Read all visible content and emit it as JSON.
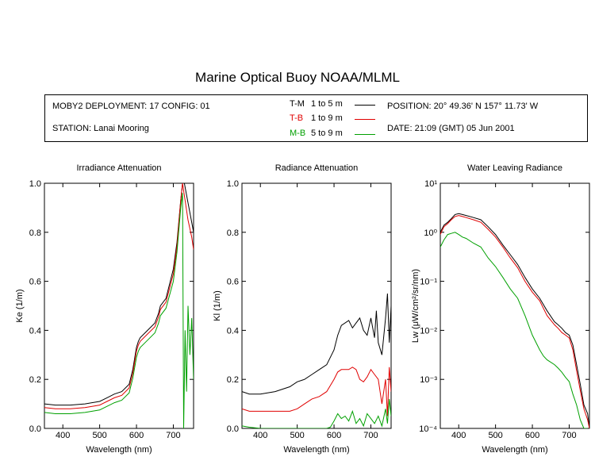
{
  "title": "Marine Optical Buoy NOAA/MLML",
  "info": {
    "deployment": "MOBY2 DEPLOYMENT: 17 CONFIG: 01",
    "station": "STATION: Lanai Mooring",
    "position": "POSITION: 20° 49.36' N   157° 11.73' W",
    "date": "DATE: 21:09 (GMT) 05 Jun 2001",
    "legend": [
      {
        "code": "T-M",
        "range": "1 to 5  m",
        "color": "#000000"
      },
      {
        "code": "T-B",
        "range": "1 to 9  m",
        "color": "#e00000"
      },
      {
        "code": "M-B",
        "range": "5 to 9  m",
        "color": "#00a000"
      }
    ]
  },
  "chart_data": [
    {
      "type": "line",
      "title": "Irradiance Attenuation",
      "xlabel": "Wavelength (nm)",
      "ylabel": "Ke  (1/m)",
      "xlim": [
        350,
        755
      ],
      "ylim": [
        0,
        1.0
      ],
      "xticks": [
        400,
        500,
        600,
        700
      ],
      "yticks": [
        0.0,
        0.2,
        0.4,
        0.6,
        0.8,
        1.0
      ],
      "ytick_labels": [
        "0.0",
        "0.2",
        "0.4",
        "0.6",
        "0.8",
        "1.0"
      ],
      "grid": false,
      "series": [
        {
          "name": "T-M",
          "color": "#000000",
          "x": [
            350,
            380,
            420,
            460,
            500,
            520,
            540,
            560,
            580,
            590,
            600,
            605,
            610,
            630,
            650,
            660,
            665,
            680,
            700,
            710,
            720,
            725,
            730,
            740,
            750,
            755
          ],
          "y": [
            0.1,
            0.095,
            0.095,
            0.1,
            0.11,
            0.125,
            0.14,
            0.15,
            0.18,
            0.24,
            0.33,
            0.355,
            0.37,
            0.4,
            0.43,
            0.47,
            0.5,
            0.53,
            0.65,
            0.76,
            0.93,
            1.0,
            1.0,
            0.92,
            0.84,
            0.8
          ]
        },
        {
          "name": "T-B",
          "color": "#e00000",
          "x": [
            350,
            380,
            420,
            460,
            500,
            520,
            540,
            560,
            580,
            590,
            600,
            605,
            610,
            630,
            650,
            660,
            665,
            680,
            700,
            710,
            720,
            725,
            730,
            740,
            750,
            755
          ],
          "y": [
            0.085,
            0.08,
            0.08,
            0.085,
            0.095,
            0.11,
            0.125,
            0.135,
            0.165,
            0.225,
            0.315,
            0.34,
            0.355,
            0.385,
            0.415,
            0.455,
            0.485,
            0.515,
            0.63,
            0.745,
            0.93,
            1.0,
            0.95,
            0.85,
            0.78,
            0.73
          ]
        },
        {
          "name": "M-B",
          "color": "#00a000",
          "x": [
            350,
            380,
            420,
            460,
            500,
            520,
            540,
            560,
            580,
            590,
            600,
            605,
            610,
            630,
            650,
            660,
            665,
            680,
            700,
            710,
            720,
            725,
            728,
            732,
            736,
            740,
            745,
            750,
            755
          ],
          "y": [
            0.065,
            0.06,
            0.06,
            0.065,
            0.075,
            0.09,
            0.105,
            0.115,
            0.145,
            0.205,
            0.29,
            0.315,
            0.33,
            0.36,
            0.39,
            0.43,
            0.46,
            0.49,
            0.6,
            0.72,
            0.9,
            0.96,
            0.0,
            0.4,
            0.15,
            0.5,
            0.3,
            0.45,
            0.2
          ]
        }
      ]
    },
    {
      "type": "line",
      "title": "Radiance Attenuation",
      "xlabel": "Wavelength (nm)",
      "ylabel": "Kl  (1/m)",
      "xlim": [
        350,
        755
      ],
      "ylim": [
        0,
        1.0
      ],
      "xticks": [
        400,
        500,
        600,
        700
      ],
      "yticks": [
        0.0,
        0.2,
        0.4,
        0.6,
        0.8,
        1.0
      ],
      "ytick_labels": [
        "0.0",
        "0.2",
        "0.4",
        "0.6",
        "0.8",
        "1.0"
      ],
      "grid": false,
      "series": [
        {
          "name": "T-M",
          "color": "#000000",
          "x": [
            350,
            370,
            400,
            440,
            480,
            500,
            520,
            540,
            560,
            580,
            600,
            610,
            620,
            640,
            650,
            660,
            670,
            680,
            690,
            700,
            710,
            715,
            720,
            730,
            740,
            745,
            750,
            755
          ],
          "y": [
            0.15,
            0.14,
            0.14,
            0.15,
            0.17,
            0.19,
            0.2,
            0.22,
            0.24,
            0.26,
            0.32,
            0.38,
            0.42,
            0.44,
            0.41,
            0.43,
            0.45,
            0.4,
            0.38,
            0.45,
            0.37,
            0.48,
            0.35,
            0.3,
            0.45,
            0.55,
            0.35,
            0.5
          ]
        },
        {
          "name": "T-B",
          "color": "#e00000",
          "x": [
            350,
            370,
            400,
            440,
            480,
            500,
            520,
            540,
            560,
            580,
            600,
            610,
            620,
            640,
            650,
            660,
            670,
            680,
            690,
            700,
            710,
            720,
            730,
            740,
            745,
            750,
            755
          ],
          "y": [
            0.08,
            0.07,
            0.07,
            0.07,
            0.07,
            0.08,
            0.1,
            0.12,
            0.13,
            0.15,
            0.2,
            0.23,
            0.24,
            0.24,
            0.25,
            0.24,
            0.2,
            0.19,
            0.21,
            0.24,
            0.22,
            0.2,
            0.1,
            0.2,
            0.05,
            0.25,
            0.15
          ]
        },
        {
          "name": "M-B",
          "color": "#00a000",
          "x": [
            350,
            370,
            400,
            440,
            480,
            520,
            560,
            580,
            590,
            600,
            610,
            620,
            630,
            640,
            650,
            660,
            670,
            680,
            690,
            700,
            710,
            720,
            730,
            740,
            745,
            750,
            755
          ],
          "y": [
            0.01,
            0.005,
            0.0,
            0.0,
            0.0,
            0.0,
            0.0,
            0.0,
            0.005,
            0.03,
            0.06,
            0.04,
            0.05,
            0.03,
            0.07,
            0.02,
            0.04,
            0.01,
            0.06,
            0.04,
            0.02,
            0.05,
            0.01,
            0.08,
            0.02,
            0.12,
            0.05
          ]
        }
      ]
    },
    {
      "type": "line",
      "title": "Water Leaving Radiance",
      "xlabel": "Wavelength (nm)",
      "ylabel": "Lw  (μW/cm²/sr/nm)",
      "log_y": true,
      "xlim": [
        350,
        755
      ],
      "ylim": [
        0.0001,
        10
      ],
      "xticks": [
        400,
        500,
        600,
        700
      ],
      "ytick_values": [
        0.0001,
        0.001,
        0.01,
        0.1,
        1,
        10
      ],
      "ytick_labels": [
        "10⁻⁴",
        "10⁻³",
        "10⁻²",
        "10⁻¹",
        "10⁰",
        "10¹"
      ],
      "grid": false,
      "series": [
        {
          "name": "T-M",
          "color": "#000000",
          "x": [
            350,
            360,
            370,
            380,
            390,
            400,
            410,
            420,
            440,
            460,
            480,
            500,
            520,
            540,
            560,
            580,
            600,
            620,
            640,
            660,
            670,
            680,
            690,
            700,
            710,
            720,
            730,
            740,
            750,
            755
          ],
          "y": [
            1.0,
            1.4,
            1.6,
            1.9,
            2.3,
            2.4,
            2.3,
            2.2,
            2.0,
            1.8,
            1.3,
            0.9,
            0.55,
            0.35,
            0.22,
            0.12,
            0.07,
            0.045,
            0.025,
            0.015,
            0.013,
            0.011,
            0.009,
            0.008,
            0.005,
            0.002,
            0.0008,
            0.0003,
            0.0002,
            0.0001
          ]
        },
        {
          "name": "T-B",
          "color": "#e00000",
          "x": [
            350,
            360,
            370,
            380,
            390,
            400,
            410,
            420,
            440,
            460,
            480,
            500,
            520,
            540,
            560,
            580,
            600,
            620,
            640,
            660,
            670,
            680,
            690,
            700,
            710,
            720,
            730,
            740,
            750,
            755
          ],
          "y": [
            0.9,
            1.3,
            1.5,
            1.8,
            2.1,
            2.2,
            2.1,
            2.0,
            1.8,
            1.6,
            1.15,
            0.8,
            0.5,
            0.3,
            0.19,
            0.1,
            0.06,
            0.04,
            0.02,
            0.013,
            0.011,
            0.009,
            0.008,
            0.007,
            0.004,
            0.0015,
            0.0006,
            0.00025,
            0.00015,
            0.0001
          ]
        },
        {
          "name": "M-B",
          "color": "#00a000",
          "x": [
            350,
            360,
            370,
            380,
            390,
            400,
            410,
            420,
            440,
            460,
            480,
            500,
            520,
            540,
            560,
            580,
            600,
            620,
            630,
            640,
            660,
            670,
            680,
            690,
            700,
            710,
            720,
            730,
            740,
            750
          ],
          "y": [
            0.5,
            0.7,
            0.9,
            0.95,
            1.0,
            0.9,
            0.8,
            0.75,
            0.6,
            0.5,
            0.3,
            0.2,
            0.12,
            0.07,
            0.045,
            0.02,
            0.008,
            0.004,
            0.003,
            0.0025,
            0.002,
            0.0017,
            0.0014,
            0.0011,
            0.0009,
            0.0005,
            0.0003,
            0.00015,
            0.0001,
            0.0001
          ]
        }
      ]
    }
  ]
}
